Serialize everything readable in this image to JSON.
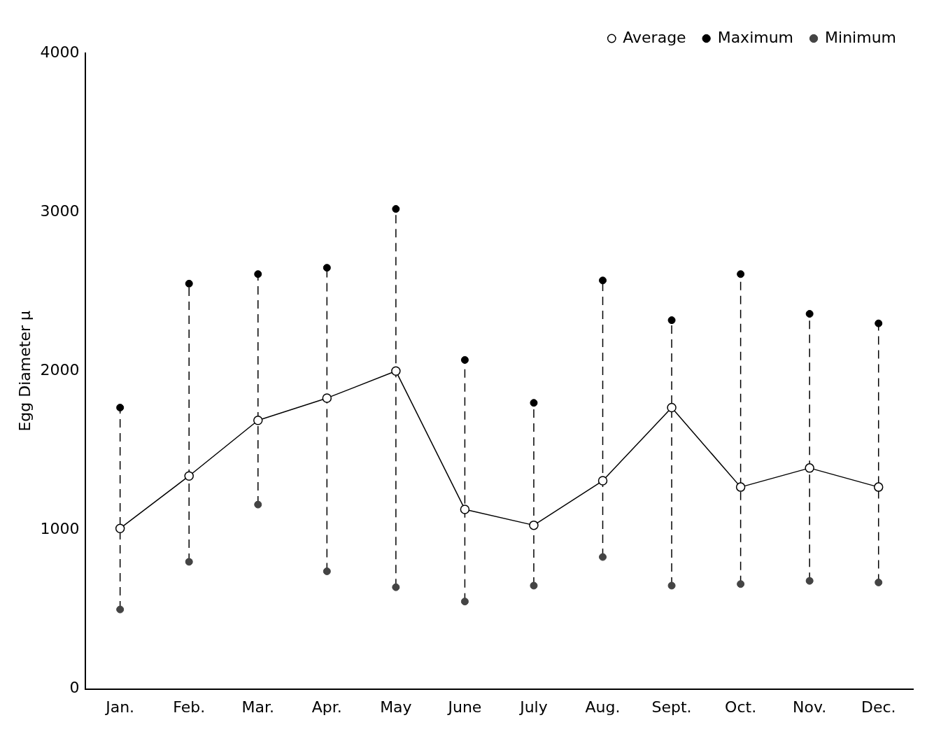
{
  "chart_data": {
    "type": "line",
    "ylabel": "Egg Diameter μ",
    "categories": [
      "Jan.",
      "Feb.",
      "Mar.",
      "Apr.",
      "May",
      "June",
      "July",
      "Aug.",
      "Sept.",
      "Oct.",
      "Nov.",
      "Dec."
    ],
    "series": [
      {
        "name": "Average",
        "type": "line",
        "color": "#000000",
        "values": [
          1010,
          1340,
          1690,
          1830,
          2000,
          1130,
          1030,
          1310,
          1770,
          1270,
          1390,
          1270
        ]
      },
      {
        "name": "Maximum",
        "type": "scatter",
        "color": "#000000",
        "values": [
          1770,
          2550,
          2610,
          2650,
          3020,
          2070,
          1800,
          2570,
          2320,
          2610,
          2360,
          2300
        ]
      },
      {
        "name": "Minimum",
        "type": "scatter",
        "color": "#444444",
        "values": [
          500,
          800,
          1160,
          740,
          640,
          550,
          650,
          830,
          650,
          660,
          680,
          670
        ]
      }
    ],
    "ylim": [
      0,
      4000
    ],
    "yticks": [
      0,
      1000,
      2000,
      3000,
      4000
    ],
    "grid": false,
    "legend": "top right",
    "marker": "circle"
  }
}
